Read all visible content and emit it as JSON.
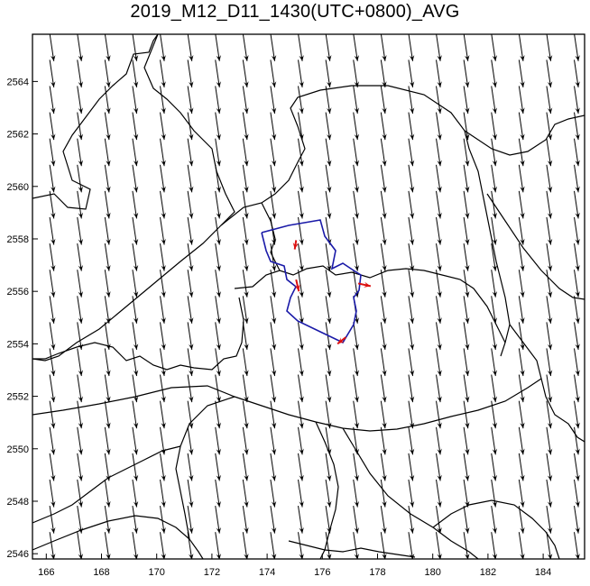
{
  "title": "2019_M12_D11_1430(UTC+0800)_AVG",
  "map": {
    "x_ticks": [
      "166",
      "168",
      "170",
      "172",
      "174",
      "176",
      "178",
      "180",
      "182",
      "184"
    ],
    "y_ticks": [
      "2564",
      "2562",
      "2560",
      "2558",
      "2556",
      "2554",
      "2552",
      "2550",
      "2548",
      "2546"
    ],
    "x_range": [
      165.5,
      185.5
    ],
    "y_range": [
      2545.8,
      2565.8
    ],
    "grid_x_start": 166.2,
    "grid_x_step": 1.0,
    "grid_x_count": 20,
    "grid_y_start": 2565.3,
    "grid_y_step": -1.0,
    "grid_y_count": 20,
    "wind_vector": {
      "dx": 0.15,
      "dy": -1.05
    },
    "colors": {
      "frame": "#000000",
      "wind_arrow": "#000000",
      "boundary": "#000000",
      "site_boundary": "#1a1aa8",
      "site_arrow": "#dd1111"
    },
    "site_points": [
      {
        "x": 175.05,
        "y": 2557.95,
        "dx": -0.05,
        "dy": -0.35
      },
      {
        "x": 175.05,
        "y": 2556.45,
        "dx": 0.1,
        "dy": -0.45
      },
      {
        "x": 177.3,
        "y": 2556.3,
        "dx": 0.45,
        "dy": -0.1
      },
      {
        "x": 176.85,
        "y": 2554.25,
        "dx": -0.3,
        "dy": -0.25
      }
    ]
  }
}
